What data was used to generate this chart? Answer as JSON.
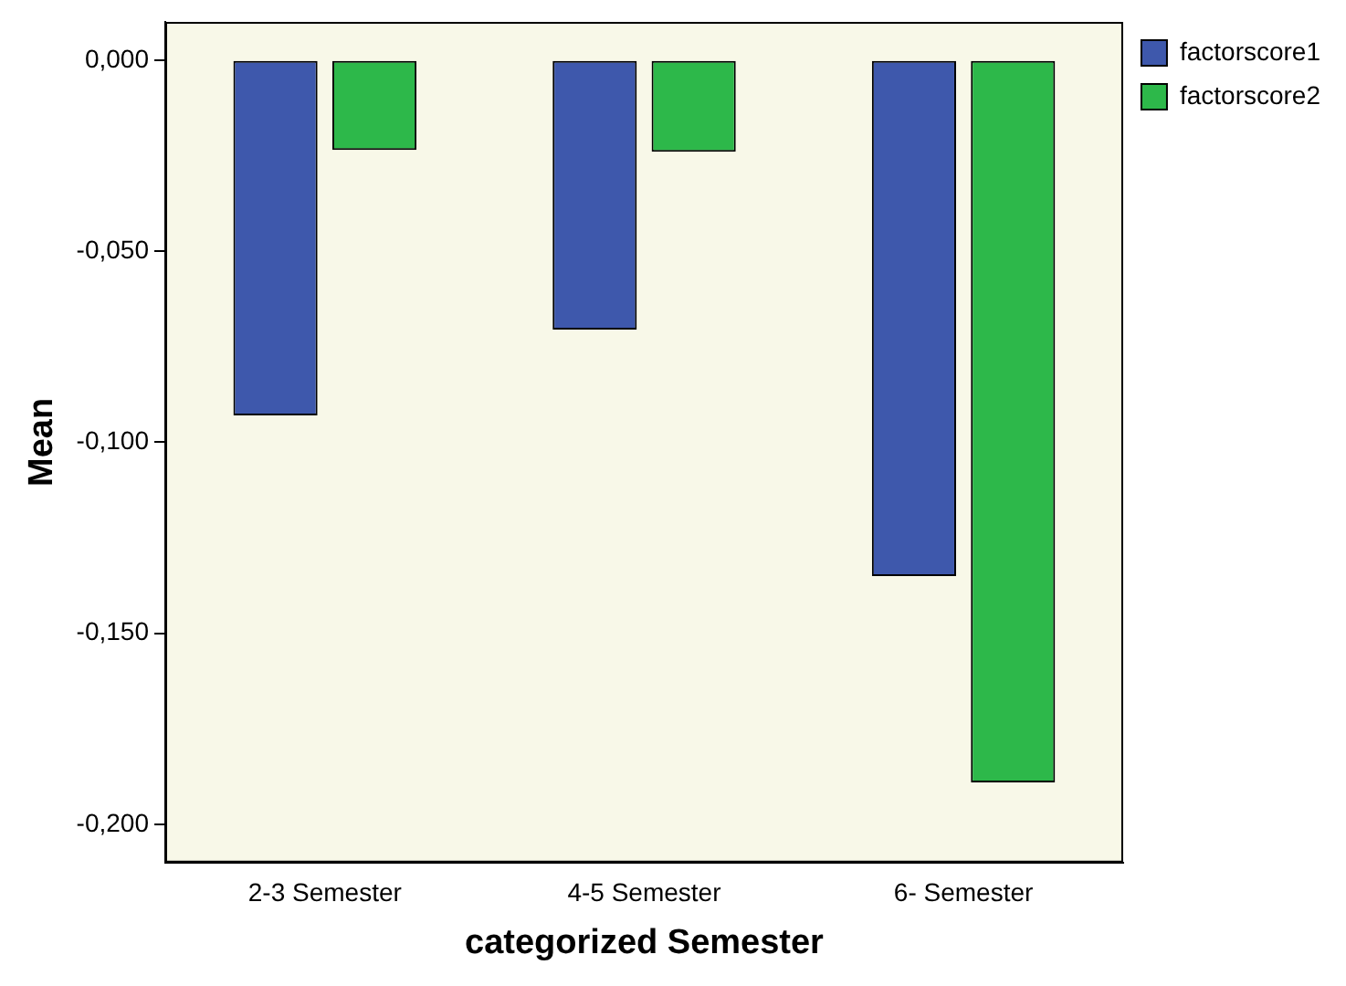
{
  "chart_data": {
    "type": "bar",
    "xlabel": "categorized Semester",
    "ylabel": "Mean",
    "categories": [
      "2-3 Semester",
      "4-5 Semester",
      "6- Semester"
    ],
    "series": [
      {
        "name": "factorscore1",
        "color": "#3e58ac",
        "values": [
          -0.093,
          -0.0705,
          -0.135
        ]
      },
      {
        "name": "factorscore2",
        "color": "#2db84a",
        "values": [
          -0.0235,
          -0.024,
          -0.189
        ]
      }
    ],
    "ylim": [
      -0.21,
      0.01
    ],
    "yticks": [
      {
        "value": 0,
        "label": "0,000"
      },
      {
        "value": -0.05,
        "label": "-0,050"
      },
      {
        "value": -0.1,
        "label": "-0,100"
      },
      {
        "value": -0.15,
        "label": "-0,150"
      },
      {
        "value": -0.2,
        "label": "-0,200"
      }
    ],
    "grid": false,
    "legend": "top right"
  }
}
